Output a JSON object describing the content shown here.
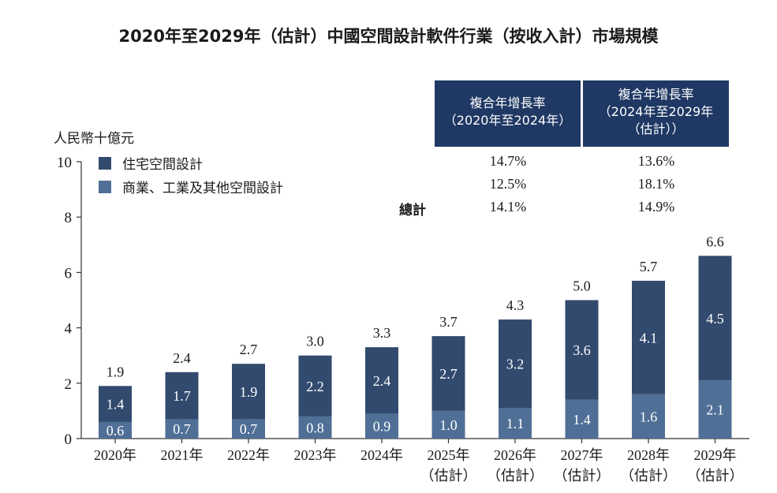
{
  "title": "2020年至2029年（估計）中國空間設計軟件行業（按收入計）市場規模",
  "unit": "人民幣十億元",
  "cagr": {
    "header_1": [
      "複合年增長率",
      "（2020年至2024年）"
    ],
    "header_2": [
      "複合年增長率",
      "（2024年至2029年",
      "（估計））"
    ],
    "rows": [
      {
        "label": "住宅空間設計",
        "v1": "14.7%",
        "v2": "13.6%"
      },
      {
        "label": "商業、工業及其他空間設計",
        "v1": "12.5%",
        "v2": "18.1%"
      },
      {
        "label": "總計",
        "v1": "14.1%",
        "v2": "14.9%"
      }
    ]
  },
  "colors": {
    "residential": "#324a6e",
    "commercial": "#4f6f96",
    "header": "#1f3864"
  },
  "chart_data": {
    "type": "bar",
    "stacked": true,
    "categories": [
      [
        "2020年"
      ],
      [
        "2021年"
      ],
      [
        "2022年"
      ],
      [
        "2023年"
      ],
      [
        "2024年"
      ],
      [
        "2025年",
        "（估計）"
      ],
      [
        "2026年",
        "（估計）"
      ],
      [
        "2027年",
        "（估計）"
      ],
      [
        "2028年",
        "（估計）"
      ],
      [
        "2029年",
        "（估計）"
      ]
    ],
    "series": [
      {
        "name": "商業、工業及其他空間設計",
        "values": [
          0.6,
          0.7,
          0.7,
          0.8,
          0.9,
          1.0,
          1.1,
          1.4,
          1.6,
          2.1
        ]
      },
      {
        "name": "住宅空間設計",
        "values": [
          1.4,
          1.7,
          1.9,
          2.2,
          2.4,
          2.7,
          3.2,
          3.6,
          4.1,
          4.5
        ]
      }
    ],
    "totals": [
      1.9,
      2.4,
      2.7,
      3.0,
      3.3,
      3.7,
      4.3,
      5.0,
      5.7,
      6.6
    ],
    "yticks": [
      0,
      2,
      4,
      6,
      8,
      10
    ],
    "ylim": [
      0,
      10
    ],
    "ylabel": "人民幣十億元",
    "xlabel": ""
  }
}
